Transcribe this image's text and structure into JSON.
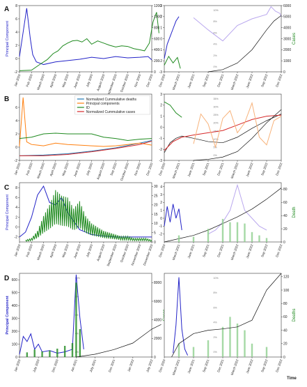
{
  "panel_labels": [
    "A",
    "B",
    "C",
    "D"
  ],
  "colors": {
    "pc_blue": "#2323c8",
    "cases_green": "#1f8a1f",
    "cases_light": "#8fd08f",
    "cum_black": "#111111",
    "orange": "#ff7f0e",
    "teal": "#1f77b4",
    "red": "#d62728",
    "purple": "#8c6bd0",
    "light_purple": "#b9a7ee",
    "light_orange": "#f7b27a"
  },
  "chart_data": [
    {
      "id": "A-left",
      "type": "line",
      "ylabel": "Principal Component",
      "ylim": [
        -2,
        8
      ],
      "yticks": [
        -2,
        0,
        2,
        4,
        6,
        8
      ],
      "y2lim": [
        0,
        1200
      ],
      "y2ticks": [
        0,
        200,
        400,
        600,
        800,
        1000,
        1200
      ],
      "xticks": [
        "Jan 2020",
        "Feb 2020",
        "March 2020",
        "April 2020",
        "May 2020",
        "June 2020",
        "July 2020",
        "August 2020",
        "September 2020",
        "October 2020",
        "Nov 2020",
        "Dec 2020"
      ],
      "series": [
        {
          "axis": "y",
          "color": "pc_blue",
          "x": [
            0.0,
            0.6,
            0.9,
            1.1,
            1.4,
            2.0,
            3.0,
            4.0,
            5.0,
            6.0,
            7.0,
            8.0,
            9.0,
            10.0,
            10.7,
            11.0
          ],
          "values": [
            0.3,
            7.6,
            3.0,
            0.6,
            -0.5,
            -0.9,
            -0.5,
            -0.3,
            -0.1,
            0.2,
            0.0,
            0.3,
            0.1,
            0.2,
            0.3,
            -0.2
          ]
        },
        {
          "axis": "y2",
          "color": "cases_green",
          "x": [
            0.0,
            1.0,
            1.8,
            2.3,
            2.8,
            3.2,
            3.6,
            4.0,
            4.4,
            4.8,
            5.2,
            5.6,
            6.0,
            6.5,
            7.0,
            7.5,
            8.0,
            8.5,
            9.0,
            9.5,
            10.0,
            10.4,
            10.8,
            11.1,
            11.4,
            11.6
          ],
          "values": [
            20,
            30,
            150,
            220,
            330,
            380,
            470,
            520,
            560,
            570,
            540,
            600,
            500,
            560,
            520,
            480,
            450,
            470,
            460,
            420,
            400,
            380,
            520,
            900,
            1080,
            700
          ]
        }
      ]
    },
    {
      "id": "A-right",
      "type": "line",
      "ylim": [
        -3,
        3
      ],
      "yticks": [
        -3,
        -2,
        -1,
        0,
        1,
        2,
        3
      ],
      "y2label": "Cases",
      "y2lim": [
        0,
        6000
      ],
      "y2ticks": [
        0,
        1000,
        2000,
        3000,
        4000,
        5000,
        6000
      ],
      "xticks": [
        "Dec 2020",
        "March 2021",
        "June 2021",
        "Sep 2021",
        "Dec 2021",
        "March 2022",
        "June 2022",
        "Sep 2022",
        "Dec 2022"
      ],
      "pct_labels": [
        "10%",
        "8%",
        "6%",
        "4%",
        "2%",
        "0%"
      ],
      "series": [
        {
          "axis": "y",
          "color": "pc_blue",
          "x": [
            0.0,
            0.2,
            0.4,
            0.6,
            0.8,
            1.0
          ],
          "values": [
            -1.8,
            -0.5,
            0.2,
            0.9,
            1.6,
            2.0
          ]
        },
        {
          "axis": "y",
          "color": "light_purple",
          "x": [
            2.0,
            3.0,
            4.0,
            5.0,
            6.0,
            7.0,
            7.3,
            7.6,
            7.9,
            8.0
          ],
          "values": [
            1.9,
            0.8,
            -0.2,
            1.2,
            1.8,
            2.2,
            2.9,
            2.5,
            2.3,
            2.0
          ]
        },
        {
          "axis": "y2",
          "color": "cases_green",
          "x": [
            0.0,
            0.3,
            0.6,
            0.9,
            1.1
          ],
          "values": [
            600,
            1400,
            800,
            1300,
            300
          ]
        },
        {
          "axis": "y",
          "color": "cum_black",
          "x": [
            3.0,
            4.0,
            5.0,
            6.0,
            7.0,
            7.5,
            8.0
          ],
          "values": [
            -3.0,
            -2.8,
            -2.2,
            -1.0,
            0.8,
            1.6,
            2.1
          ]
        }
      ]
    },
    {
      "id": "B-left",
      "type": "line",
      "ylim": [
        -2,
        8
      ],
      "yticks": [
        -2,
        0,
        2,
        4,
        6
      ],
      "xticks": [
        "Jan 2020",
        "Feb 2020",
        "March 2020",
        "April 2020",
        "May 2020",
        "June 2020",
        "July 2020",
        "August 2020",
        "Sep 2020",
        "October 2020",
        "Nov 2020",
        "Dec 2020"
      ],
      "legend": [
        "Normalized Cummulative deaths",
        "Principal components",
        "ID",
        "Normalized Cummulative cases"
      ],
      "series": [
        {
          "name": "Normalized Cummulative deaths",
          "color": "teal",
          "x": [
            0,
            2,
            4,
            6,
            8,
            10,
            11
          ],
          "values": [
            -1.3,
            -1.2,
            -1.0,
            -0.6,
            -0.1,
            0.6,
            1.0
          ]
        },
        {
          "name": "Principal components",
          "color": "orange",
          "x": [
            0.0,
            0.3,
            0.6,
            1.0,
            1.5,
            2.0,
            3.0,
            4.0,
            5.0,
            6.0,
            7.0,
            8.0,
            9.0,
            10.0,
            11.0
          ],
          "values": [
            0.1,
            7.5,
            0.8,
            0.4,
            0.3,
            0.2,
            0.6,
            0.4,
            0.3,
            0.2,
            0.1,
            0.2,
            0.4,
            0.6,
            0.3
          ]
        },
        {
          "name": "ID",
          "color": "cases_green",
          "x": [
            0.0,
            1.0,
            2.0,
            3.0,
            4.0,
            5.0,
            6.0,
            7.0,
            8.0,
            9.0,
            10.0,
            11.0
          ],
          "values": [
            1.3,
            1.5,
            2.0,
            2.1,
            2.0,
            2.0,
            2.0,
            1.5,
            1.3,
            1.0,
            1.2,
            1.3
          ]
        },
        {
          "name": "Normalized Cummulative cases",
          "color": "red",
          "x": [
            0,
            2,
            4,
            6,
            8,
            10,
            11
          ],
          "values": [
            -1.3,
            -1.3,
            -1.1,
            -0.7,
            -0.2,
            0.4,
            0.9
          ]
        }
      ]
    },
    {
      "id": "B-right",
      "type": "line",
      "ylim": [
        -3,
        3
      ],
      "yticks": [
        -3,
        -2,
        -1,
        0,
        1,
        2,
        3
      ],
      "xticks": [
        "Dec 2020",
        "March 2021",
        "June 2021",
        "Sep 2021",
        "Dec 2021",
        "March 2022",
        "June 2022",
        "Sep 2022",
        "Dec 2022"
      ],
      "pct_labels": [
        "35%",
        "30%",
        "25%",
        "20%",
        "15%",
        "10%",
        "5%",
        "0%"
      ],
      "series": [
        {
          "color": "cases_green",
          "x": [
            0.0,
            0.4,
            0.8,
            1.2
          ],
          "values": [
            2.3,
            2.0,
            1.3,
            0.9
          ]
        },
        {
          "color": "cum_black",
          "x": [
            0.0,
            0.4,
            0.8,
            1.2,
            2.0,
            3.0,
            4.0,
            5.0,
            6.0,
            7.0,
            8.0
          ],
          "values": [
            -2.3,
            -1.4,
            -1.0,
            -0.8,
            -1.0,
            -1.3,
            -1.4,
            -0.9,
            -0.1,
            0.6,
            1.2
          ]
        },
        {
          "color": "red",
          "x": [
            0.0,
            0.6,
            1.2,
            2.0,
            3.0,
            4.0,
            5.0,
            6.0,
            7.0,
            8.0
          ],
          "values": [
            -2.1,
            -1.3,
            -0.9,
            -0.7,
            -0.5,
            -0.3,
            0.2,
            0.7,
            1.0,
            1.1
          ]
        },
        {
          "color": "cum_black",
          "x": [
            2.0,
            3.0,
            4.0,
            5.0,
            6.0,
            7.0,
            8.0
          ],
          "values": [
            -3.0,
            -2.9,
            -2.7,
            -2.2,
            -1.0,
            0.4,
            1.6
          ]
        },
        {
          "color": "light_orange",
          "x": [
            2.0,
            2.5,
            3.0,
            3.5,
            4.0,
            4.5,
            5.0,
            5.5,
            6.0,
            6.5,
            7.0,
            7.5,
            8.0
          ],
          "values": [
            -1.5,
            1.2,
            0.3,
            -1.8,
            0.8,
            1.5,
            -0.5,
            0.4,
            2.2,
            -0.9,
            -1.6,
            0.6,
            1.0
          ]
        }
      ]
    },
    {
      "id": "C-left",
      "type": "line",
      "ylabel": "Principal Component",
      "ylim": [
        -3,
        9
      ],
      "yticks": [
        -2,
        0,
        2,
        4,
        6,
        8
      ],
      "y2lim": [
        0,
        32
      ],
      "y2ticks": [
        0,
        5,
        10,
        15,
        20,
        25,
        30
      ],
      "xticks": [
        "Jan 2020",
        "Feb 2020",
        "March 2020",
        "April 2020",
        "May 2020",
        "June 2020",
        "July 2020",
        "August 2020",
        "September 2020",
        "October 2020",
        "November 2020",
        "December 2020"
      ],
      "series": [
        {
          "axis": "y",
          "color": "pc_blue",
          "x": [
            0.0,
            0.5,
            1.0,
            1.5,
            2.0,
            2.5,
            3.0,
            3.5,
            4.0,
            5.0,
            6.0,
            7.0,
            8.0,
            9.0,
            10.0,
            11.0
          ],
          "values": [
            -2.0,
            -1.0,
            2.0,
            6.5,
            8.3,
            5.0,
            4.5,
            6.0,
            3.0,
            -0.5,
            -1.5,
            -1.8,
            -2.0,
            -2.0,
            -2.0,
            -2.0
          ]
        },
        {
          "axis": "y2",
          "color": "cases_green",
          "kind": "spiky",
          "x": [
            0.5,
            1.0,
            1.5,
            2.0,
            2.5,
            3.0,
            3.5,
            4.0,
            4.5,
            5.0,
            5.5,
            6.0,
            6.5,
            7.0,
            7.5,
            8.0,
            8.5,
            9.0,
            9.5,
            10.0,
            10.5,
            11.0
          ],
          "values": [
            1,
            2,
            6,
            14,
            20,
            28,
            25,
            24,
            18,
            22,
            14,
            10,
            8,
            6,
            5,
            4,
            3,
            3,
            2,
            2,
            2,
            1
          ]
        }
      ]
    },
    {
      "id": "C-right",
      "type": "line",
      "ylim": [
        -3,
        4.5
      ],
      "yticks": [
        -2,
        -1,
        0,
        1,
        2,
        3,
        4
      ],
      "y2label": "Death",
      "y2lim": [
        0,
        90
      ],
      "y2ticks": [
        0,
        20,
        40,
        60,
        80
      ],
      "xticks": [
        "Dec 2020",
        "March 2021",
        "June 2021",
        "Sep 2021",
        "Dec 2021",
        "March 2022",
        "June 2022",
        "Sep 2022",
        "Dec 2022"
      ],
      "series": [
        {
          "axis": "y",
          "color": "pc_blue",
          "x": [
            0.0,
            0.2,
            0.4,
            0.6,
            0.8,
            1.0,
            1.2
          ],
          "values": [
            -1.0,
            1.5,
            -0.5,
            1.8,
            0.0,
            1.2,
            -1.5
          ]
        },
        {
          "axis": "y",
          "color": "light_purple",
          "x": [
            3.0,
            3.5,
            4.0,
            4.5,
            5.0,
            5.5,
            6.0,
            6.5,
            7.0
          ],
          "values": [
            -2.0,
            -1.5,
            -0.5,
            1.0,
            4.2,
            1.0,
            0.0,
            -1.0,
            -1.5
          ]
        },
        {
          "axis": "y2",
          "color": "cum_black",
          "x": [
            0.0,
            1.0,
            2.0,
            3.0,
            4.0,
            5.0,
            6.0,
            7.0,
            8.0
          ],
          "values": [
            0,
            5,
            10,
            18,
            28,
            38,
            50,
            65,
            82
          ]
        },
        {
          "axis": "y2",
          "color": "cases_light",
          "kind": "bars",
          "x": [
            1.0,
            2.0,
            3.0,
            4.0,
            4.5,
            5.0,
            5.5,
            6.0,
            6.5,
            7.0
          ],
          "values": [
            10,
            8,
            20,
            35,
            30,
            30,
            28,
            15,
            10,
            6
          ]
        }
      ]
    },
    {
      "id": "D-left",
      "type": "bar",
      "ylabel": "Principal Component",
      "ylim": [
        0,
        650
      ],
      "yticks": [
        0,
        100,
        200,
        300,
        400,
        500,
        600
      ],
      "y2label": "Cases",
      "y2lim": [
        0,
        9000
      ],
      "y2ticks": [
        0,
        2000,
        4000,
        6000,
        8000
      ],
      "xticks": [
        "Jan 2020",
        "July 2020",
        "Dec 2020",
        "Jan 2021",
        "July 2021",
        "Dec 2021",
        "Jan 2022",
        "July 2022"
      ],
      "pct_labels": [
        "10%",
        "8%",
        "6%",
        "4%",
        "2%"
      ],
      "series": [
        {
          "axis": "y",
          "color": "pc_blue",
          "x": [
            0.0,
            0.2,
            0.4,
            0.6,
            0.8,
            1.0,
            1.2,
            1.6,
            2.0,
            2.4,
            2.8,
            3.0,
            3.2,
            3.4
          ],
          "values": [
            20,
            160,
            120,
            180,
            60,
            100,
            40,
            50,
            30,
            40,
            60,
            640,
            300,
            60
          ]
        },
        {
          "axis": "y2",
          "color": "cases_green",
          "kind": "bars",
          "x": [
            0.4,
            0.8,
            1.2,
            1.6,
            2.0,
            2.4,
            2.8,
            3.0,
            3.2
          ],
          "values": [
            500,
            800,
            600,
            700,
            900,
            1200,
            1500,
            8000,
            3000
          ]
        },
        {
          "axis": "y2",
          "color": "cum_black",
          "x": [
            3.0,
            4.0,
            5.0,
            6.0,
            7.0,
            7.5
          ],
          "values": [
            0,
            300,
            800,
            1500,
            3000,
            3500
          ]
        }
      ]
    },
    {
      "id": "D-right",
      "type": "bar",
      "ylim": [
        0,
        1.05
      ],
      "y2label": "Deaths",
      "y2lim": [
        0,
        125
      ],
      "y2ticks": [
        0,
        20,
        40,
        60,
        80,
        100,
        120
      ],
      "xticks": [
        "Dec 2020",
        "March 2021",
        "June 2021",
        "Sep 2021",
        "Dec 2021",
        "March 2022",
        "June 2022",
        "Sep 2022",
        "Dec 2022"
      ],
      "xlabel": "Time",
      "pct_labels": [
        "10%",
        "8%",
        "6%",
        "4%",
        "2%",
        "0%"
      ],
      "series": [
        {
          "axis": "y",
          "color": "pc_blue",
          "x": [
            0.6,
            0.8,
            1.0,
            1.2,
            1.4,
            1.6
          ],
          "values": [
            0.05,
            0.4,
            1.0,
            0.35,
            0.1,
            0.02
          ]
        },
        {
          "axis": "y2",
          "color": "cases_light",
          "kind": "bars",
          "x": [
            1.0,
            2.0,
            3.0,
            4.0,
            4.5,
            5.0,
            5.5,
            6.0,
            7.0
          ],
          "values": [
            20,
            15,
            25,
            45,
            60,
            50,
            40,
            20,
            15
          ]
        },
        {
          "axis": "y2",
          "color": "cum_black",
          "x": [
            0.5,
            1.0,
            2.0,
            3.0,
            4.0,
            5.0,
            6.0,
            7.0,
            8.0
          ],
          "values": [
            0,
            20,
            35,
            40,
            42,
            45,
            55,
            100,
            125
          ]
        }
      ]
    }
  ]
}
